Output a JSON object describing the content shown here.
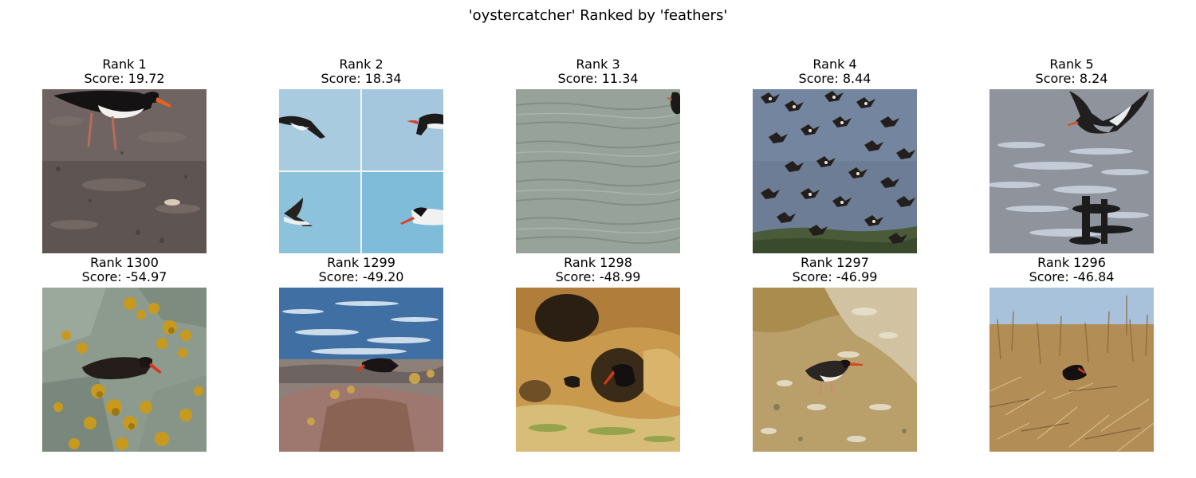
{
  "figure": {
    "title": "'oystercatcher' Ranked by 'feathers'"
  },
  "top_row": [
    {
      "rank": "Rank 1",
      "score": "Score: 19.72",
      "image": "oystercatcher-wading-mudflat-image"
    },
    {
      "rank": "Rank 2",
      "score": "Score: 18.34",
      "image": "oystercatchers-flying-collage-image"
    },
    {
      "rank": "Rank 3",
      "score": "Score: 11.34",
      "image": "rippled-water-with-bird-edge-image"
    },
    {
      "rank": "Rank 4",
      "score": "Score: 8.44",
      "image": "oystercatcher-flock-in-flight-image"
    },
    {
      "rank": "Rank 5",
      "score": "Score: 8.24",
      "image": "oystercatcher-flying-over-water-image"
    }
  ],
  "bottom_row": [
    {
      "rank": "Rank 1300",
      "score": "Score: -54.97",
      "image": "black-oystercatcher-on-lichen-rocks-image"
    },
    {
      "rank": "Rank 1299",
      "score": "Score: -49.20",
      "image": "oystercatcher-on-shore-rocks-waves-image"
    },
    {
      "rank": "Rank 1298",
      "score": "Score: -48.99",
      "image": "oystercatcher-in-sandstone-cave-image"
    },
    {
      "rank": "Rank 1297",
      "score": "Score: -46.99",
      "image": "oystercatcher-on-dry-mud-image"
    },
    {
      "rank": "Rank 1296",
      "score": "Score: -46.84",
      "image": "oystercatcher-in-dry-grass-image"
    }
  ],
  "colors": {
    "background": "#ffffff",
    "text": "#000000"
  }
}
